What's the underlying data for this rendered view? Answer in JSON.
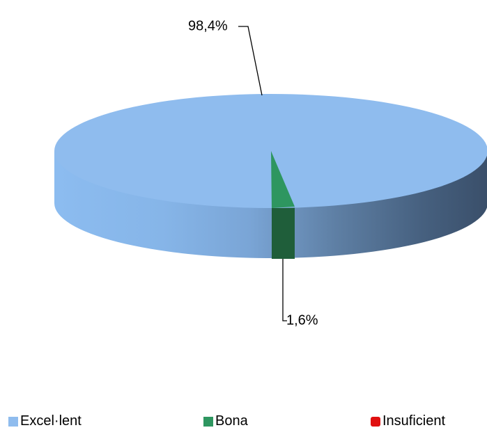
{
  "chart_data": {
    "type": "pie",
    "style": "3d",
    "categories": [
      "Excel·lent",
      "Bona",
      "Insuficient"
    ],
    "values": [
      98.4,
      1.6,
      0
    ],
    "data_labels": [
      "98,4%",
      "1,6%",
      ""
    ],
    "colors": [
      "#8fbcee",
      "#2e9660",
      "#e01010"
    ],
    "legend": {
      "position": "bottom",
      "items": [
        {
          "label": "Excel·lent",
          "color": "#8fbcee"
        },
        {
          "label": "Bona",
          "color": "#2e9660"
        },
        {
          "label": "Insuficient",
          "color": "#e01010"
        }
      ]
    }
  }
}
